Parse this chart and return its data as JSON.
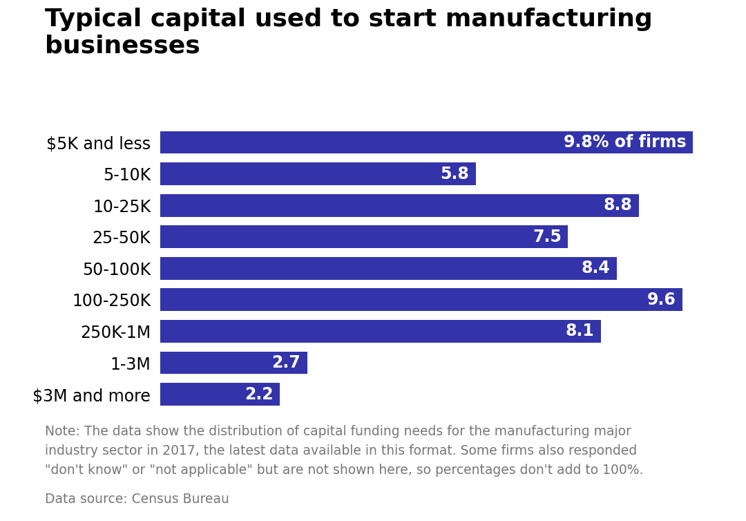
{
  "title_line1": "Typical capital used to start manufacturing",
  "title_line2": "businesses",
  "categories": [
    "$5K and less",
    "5-10K",
    "10-25K",
    "25-50K",
    "50-100K",
    "100-250K",
    "250K-1M",
    "1-3M",
    "$3M and more"
  ],
  "values": [
    9.8,
    5.8,
    8.8,
    7.5,
    8.4,
    9.6,
    8.1,
    2.7,
    2.2
  ],
  "bar_color": "#3333aa",
  "bar_labels": [
    "9.8% of firms",
    "5.8",
    "8.8",
    "7.5",
    "8.4",
    "9.6",
    "8.1",
    "2.7",
    "2.2"
  ],
  "xlim": [
    0,
    10.5
  ],
  "background_color": "#ffffff",
  "title_fontsize": 26,
  "title_fontweight": "bold",
  "label_fontsize": 17,
  "bar_label_fontsize": 17,
  "note_text": "Note: The data show the distribution of capital funding needs for the manufacturing major\nindustry sector in 2017, the latest data available in this format. Some firms also responded\n\"don't know\" or \"not applicable\" but are not shown here, so percentages don't add to 100%.",
  "source_text": "Data source: Census Bureau",
  "note_fontsize": 13.5,
  "source_fontsize": 13.5
}
